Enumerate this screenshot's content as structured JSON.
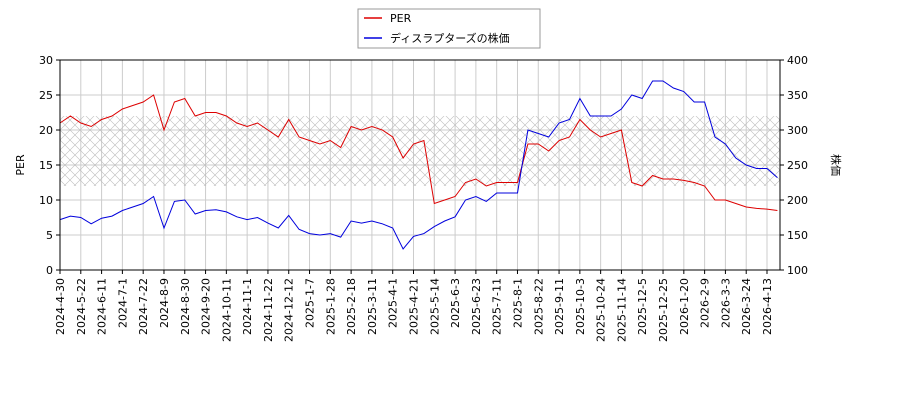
{
  "chart_data": {
    "type": "line",
    "x": [
      "2024-4-30",
      "2024-5-10",
      "2024-5-22",
      "2024-5-31",
      "2024-6-11",
      "2024-6-20",
      "2024-7-1",
      "2024-7-10",
      "2024-7-22",
      "2024-7-31",
      "2024-8-9",
      "2024-8-20",
      "2024-8-30",
      "2024-9-10",
      "2024-9-20",
      "2024-10-1",
      "2024-10-11",
      "2024-10-22",
      "2024-11-1",
      "2024-11-12",
      "2024-11-22",
      "2024-12-3",
      "2024-12-12",
      "2024-12-25",
      "2025-1-7",
      "2025-1-17",
      "2025-1-28",
      "2025-2-7",
      "2025-2-18",
      "2025-2-28",
      "2025-3-11",
      "2025-3-20",
      "2025-4-1",
      "2025-4-10",
      "2025-4-21",
      "2025-5-2",
      "2025-5-14",
      "2025-5-23",
      "2025-6-3",
      "2025-6-12",
      "2025-6-23",
      "2025-7-2",
      "2025-7-11",
      "2025-7-22",
      "2025-8-1",
      "2025-8-12",
      "2025-8-22",
      "2025-9-2",
      "2025-9-11",
      "2025-9-22",
      "2025-10-3",
      "2025-10-14",
      "2025-10-24",
      "2025-11-4",
      "2025-11-14",
      "2025-11-25",
      "2025-12-5",
      "2025-12-16",
      "2025-12-25",
      "2026-1-8",
      "2026-1-20",
      "2026-1-29",
      "2026-2-9",
      "2026-2-19",
      "2026-3-3",
      "2026-3-12",
      "2026-3-24",
      "2026-4-2",
      "2026-4-13",
      "2026-4-22"
    ],
    "xticks": [
      "2024-4-30",
      "2024-5-22",
      "2024-6-11",
      "2024-7-1",
      "2024-7-22",
      "2024-8-9",
      "2024-8-30",
      "2024-9-20",
      "2024-10-11",
      "2024-11-1",
      "2024-11-22",
      "2024-12-12",
      "2025-1-7",
      "2025-1-28",
      "2025-2-18",
      "2025-3-11",
      "2025-4-1",
      "2025-4-21",
      "2025-5-14",
      "2025-6-3",
      "2025-6-23",
      "2025-7-11",
      "2025-8-1",
      "2025-8-22",
      "2025-9-11",
      "2025-10-3",
      "2025-10-24",
      "2025-11-14",
      "2025-12-5",
      "2025-12-25",
      "2026-1-20",
      "2026-2-9",
      "2026-3-3",
      "2026-3-24",
      "2026-4-13"
    ],
    "ylabel": "PER",
    "y2label": "株価",
    "ylim": [
      0,
      30
    ],
    "yticks": [
      0,
      5,
      10,
      15,
      20,
      25,
      30
    ],
    "y2lim": [
      100,
      400
    ],
    "y2ticks": [
      100,
      150,
      200,
      250,
      300,
      350,
      400
    ],
    "grid": true,
    "legend": "top",
    "hatch_band": [
      12,
      22
    ],
    "series": [
      {
        "name": "PER",
        "color": "#dd0000",
        "values": [
          21,
          22,
          21,
          20.5,
          21.5,
          22,
          23,
          23.5,
          24,
          25,
          20,
          24,
          24.5,
          22,
          22.5,
          22.5,
          22,
          21,
          20.5,
          21,
          20,
          19,
          21.5,
          19,
          18.5,
          18,
          18.5,
          17.5,
          20.5,
          20,
          20.5,
          20,
          19,
          16,
          18,
          18.5,
          9.5,
          10,
          10.5,
          12.5,
          13,
          12,
          12.5,
          12.5,
          12.5,
          18,
          18,
          17,
          18.5,
          19,
          21.5,
          20,
          19,
          19.5,
          20,
          12.5,
          12,
          13.5,
          13,
          13,
          12.8,
          12.5,
          12,
          10,
          10,
          9.5,
          9,
          8.8,
          8.7,
          8.5
        ]
      },
      {
        "name": "ディスラプターズの株価",
        "color": "#0000dd",
        "axis": "y2",
        "values": [
          172,
          177,
          175,
          166,
          174,
          177,
          185,
          190,
          195,
          205,
          160,
          198,
          200,
          180,
          185,
          186,
          183,
          176,
          172,
          175,
          167,
          160,
          178,
          158,
          152,
          150,
          152,
          147,
          170,
          167,
          170,
          166,
          160,
          130,
          148,
          152,
          162,
          170,
          176,
          200,
          205,
          198,
          210,
          210,
          210,
          300,
          295,
          290,
          310,
          315,
          345,
          320,
          320,
          320,
          330,
          350,
          345,
          370,
          370,
          360,
          355,
          340,
          340,
          290,
          280,
          260,
          250,
          245,
          245,
          232
        ]
      }
    ]
  }
}
